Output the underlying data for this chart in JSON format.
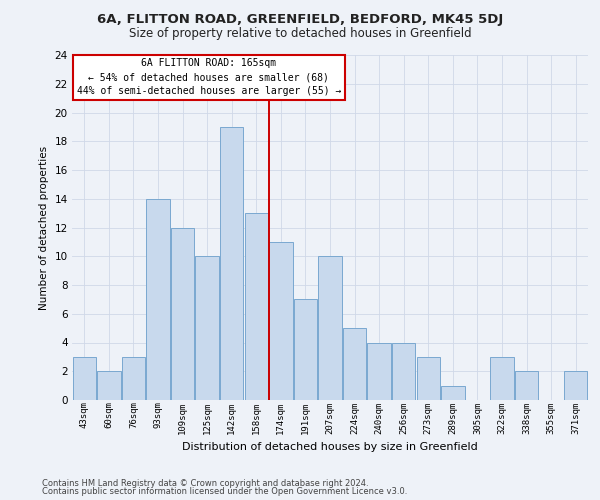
{
  "title": "6A, FLITTON ROAD, GREENFIELD, BEDFORD, MK45 5DJ",
  "subtitle": "Size of property relative to detached houses in Greenfield",
  "xlabel": "Distribution of detached houses by size in Greenfield",
  "ylabel": "Number of detached properties",
  "footer1": "Contains HM Land Registry data © Crown copyright and database right 2024.",
  "footer2": "Contains public sector information licensed under the Open Government Licence v3.0.",
  "categories": [
    "43sqm",
    "60sqm",
    "76sqm",
    "93sqm",
    "109sqm",
    "125sqm",
    "142sqm",
    "158sqm",
    "174sqm",
    "191sqm",
    "207sqm",
    "224sqm",
    "240sqm",
    "256sqm",
    "273sqm",
    "289sqm",
    "305sqm",
    "322sqm",
    "338sqm",
    "355sqm",
    "371sqm"
  ],
  "values": [
    3,
    2,
    3,
    14,
    12,
    10,
    19,
    13,
    11,
    7,
    10,
    5,
    4,
    4,
    3,
    1,
    0,
    3,
    2,
    0,
    2
  ],
  "bar_color": "#c8d9ed",
  "bar_edge_color": "#7aa8d0",
  "grid_color": "#d0d8e8",
  "vline_x": 7.5,
  "vline_color": "#cc0000",
  "annotation_title": "6A FLITTON ROAD: 165sqm",
  "annotation_line1": "← 54% of detached houses are smaller (68)",
  "annotation_line2": "44% of semi-detached houses are larger (55) →",
  "annotation_box_color": "#ffffff",
  "annotation_box_edgecolor": "#cc0000",
  "ylim": [
    0,
    24
  ],
  "yticks": [
    0,
    2,
    4,
    6,
    8,
    10,
    12,
    14,
    16,
    18,
    20,
    22,
    24
  ],
  "background_color": "#eef2f8"
}
